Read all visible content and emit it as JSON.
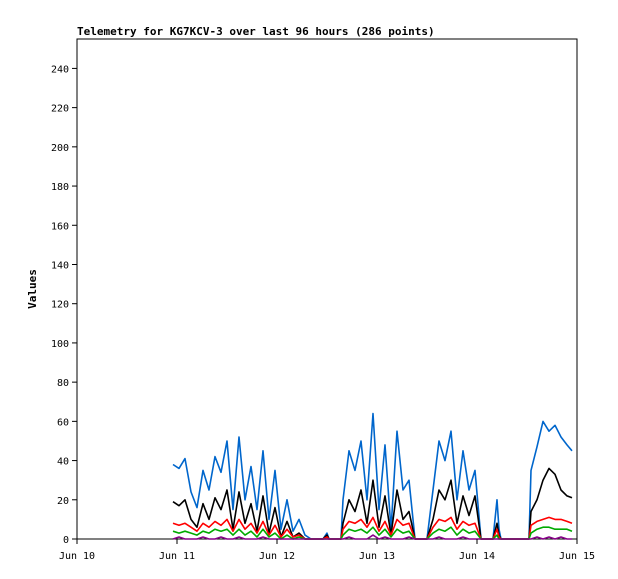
{
  "chart_data": {
    "type": "line",
    "title": "Telemetry for KG7KCV-3 over last 96 hours (286 points)",
    "xlabel": "",
    "ylabel": "Values",
    "x_tick_labels": [
      "Jun 10",
      "Jun 11",
      "Jun 12",
      "Jun 13",
      "Jun 14",
      "Jun 15"
    ],
    "x_range_days": [
      0,
      5
    ],
    "ylim": [
      0,
      255
    ],
    "y_ticks": [
      0,
      20,
      40,
      60,
      80,
      100,
      120,
      140,
      160,
      180,
      200,
      220,
      240
    ],
    "grid": false,
    "legend": "none",
    "series": [
      {
        "color": "#0066cc",
        "x": [
          0.96,
          1.02,
          1.08,
          1.14,
          1.2,
          1.26,
          1.32,
          1.38,
          1.44,
          1.5,
          1.56,
          1.62,
          1.68,
          1.74,
          1.8,
          1.86,
          1.92,
          1.98,
          2.04,
          2.1,
          2.16,
          2.22,
          2.28,
          2.34,
          2.4,
          2.46,
          2.5,
          2.52,
          2.56,
          2.64,
          2.66,
          2.72,
          2.78,
          2.84,
          2.9,
          2.96,
          3.02,
          3.08,
          3.14,
          3.2,
          3.26,
          3.32,
          3.38,
          3.44,
          3.5,
          3.56,
          3.62,
          3.68,
          3.74,
          3.8,
          3.86,
          3.92,
          3.98,
          4.04,
          4.1,
          4.16,
          4.2,
          4.22,
          4.24,
          4.3,
          4.36,
          4.42,
          4.48,
          4.52,
          4.54,
          4.6,
          4.66,
          4.72,
          4.78,
          4.84,
          4.9,
          4.95
        ],
        "y": [
          38,
          36,
          41,
          24,
          16,
          35,
          25,
          42,
          34,
          50,
          15,
          52,
          20,
          37,
          15,
          45,
          10,
          35,
          5,
          20,
          4,
          10,
          2,
          0,
          0,
          0,
          3,
          0,
          0,
          0,
          20,
          45,
          35,
          50,
          20,
          64,
          15,
          48,
          5,
          55,
          25,
          30,
          0,
          0,
          0,
          25,
          50,
          40,
          55,
          20,
          45,
          25,
          35,
          0,
          0,
          0,
          20,
          5,
          0,
          0,
          0,
          0,
          0,
          0,
          35,
          47,
          60,
          55,
          58,
          52,
          48,
          45
        ]
      },
      {
        "color": "#000000",
        "x": [
          0.96,
          1.02,
          1.08,
          1.14,
          1.2,
          1.26,
          1.32,
          1.38,
          1.44,
          1.5,
          1.56,
          1.62,
          1.68,
          1.74,
          1.8,
          1.86,
          1.92,
          1.98,
          2.04,
          2.1,
          2.16,
          2.22,
          2.28,
          2.34,
          2.4,
          2.46,
          2.5,
          2.52,
          2.56,
          2.64,
          2.66,
          2.72,
          2.78,
          2.84,
          2.9,
          2.96,
          3.02,
          3.08,
          3.14,
          3.2,
          3.26,
          3.32,
          3.38,
          3.44,
          3.5,
          3.56,
          3.62,
          3.68,
          3.74,
          3.8,
          3.86,
          3.92,
          3.98,
          4.04,
          4.1,
          4.16,
          4.2,
          4.22,
          4.24,
          4.3,
          4.36,
          4.42,
          4.48,
          4.52,
          4.54,
          4.6,
          4.66,
          4.72,
          4.78,
          4.84,
          4.9,
          4.95
        ],
        "y": [
          19,
          17,
          20,
          10,
          6,
          18,
          10,
          21,
          15,
          25,
          5,
          24,
          8,
          18,
          4,
          22,
          3,
          16,
          1,
          9,
          1,
          3,
          0,
          0,
          0,
          0,
          2,
          0,
          0,
          0,
          8,
          20,
          14,
          25,
          8,
          30,
          6,
          22,
          2,
          25,
          10,
          14,
          0,
          0,
          0,
          10,
          25,
          20,
          30,
          8,
          22,
          12,
          22,
          0,
          0,
          0,
          8,
          2,
          0,
          0,
          0,
          0,
          0,
          0,
          14,
          20,
          30,
          36,
          33,
          25,
          22,
          21
        ]
      },
      {
        "color": "#ff0000",
        "x": [
          0.96,
          1.02,
          1.08,
          1.14,
          1.2,
          1.26,
          1.32,
          1.38,
          1.44,
          1.5,
          1.56,
          1.62,
          1.68,
          1.74,
          1.8,
          1.86,
          1.92,
          1.98,
          2.04,
          2.1,
          2.16,
          2.22,
          2.28,
          2.34,
          2.4,
          2.46,
          2.5,
          2.52,
          2.56,
          2.64,
          2.66,
          2.72,
          2.78,
          2.84,
          2.9,
          2.96,
          3.02,
          3.08,
          3.14,
          3.2,
          3.26,
          3.32,
          3.38,
          3.44,
          3.5,
          3.56,
          3.62,
          3.68,
          3.74,
          3.8,
          3.86,
          3.92,
          3.98,
          4.04,
          4.1,
          4.16,
          4.2,
          4.22,
          4.24,
          4.3,
          4.36,
          4.42,
          4.48,
          4.52,
          4.54,
          4.6,
          4.66,
          4.72,
          4.78,
          4.84,
          4.9,
          4.95
        ],
        "y": [
          8,
          7,
          8,
          6,
          4,
          8,
          6,
          9,
          7,
          10,
          4,
          10,
          5,
          8,
          3,
          9,
          2,
          7,
          1,
          5,
          1,
          2,
          0,
          0,
          0,
          0,
          1,
          0,
          0,
          0,
          5,
          9,
          8,
          10,
          6,
          11,
          4,
          9,
          2,
          10,
          7,
          8,
          0,
          0,
          0,
          6,
          10,
          9,
          11,
          5,
          9,
          7,
          8,
          0,
          0,
          0,
          5,
          1,
          0,
          0,
          0,
          0,
          0,
          0,
          7,
          9,
          10,
          11,
          10,
          10,
          9,
          8
        ]
      },
      {
        "color": "#00aa00",
        "x": [
          0.96,
          1.02,
          1.08,
          1.14,
          1.2,
          1.26,
          1.32,
          1.38,
          1.44,
          1.5,
          1.56,
          1.62,
          1.68,
          1.74,
          1.8,
          1.86,
          1.92,
          1.98,
          2.04,
          2.1,
          2.16,
          2.22,
          2.28,
          2.34,
          2.4,
          2.46,
          2.5,
          2.52,
          2.56,
          2.64,
          2.66,
          2.72,
          2.78,
          2.84,
          2.9,
          2.96,
          3.02,
          3.08,
          3.14,
          3.2,
          3.26,
          3.32,
          3.38,
          3.44,
          3.5,
          3.56,
          3.62,
          3.68,
          3.74,
          3.8,
          3.86,
          3.92,
          3.98,
          4.04,
          4.1,
          4.16,
          4.2,
          4.22,
          4.24,
          4.3,
          4.36,
          4.42,
          4.48,
          4.52,
          4.54,
          4.6,
          4.66,
          4.72,
          4.78,
          4.84,
          4.9,
          4.95
        ],
        "y": [
          4,
          3,
          4,
          3,
          2,
          4,
          3,
          5,
          4,
          5,
          2,
          5,
          2,
          4,
          1,
          5,
          1,
          3,
          0,
          2,
          0,
          1,
          0,
          0,
          0,
          0,
          0,
          0,
          0,
          0,
          2,
          5,
          4,
          5,
          3,
          6,
          2,
          5,
          1,
          5,
          3,
          4,
          0,
          0,
          0,
          3,
          5,
          4,
          6,
          2,
          5,
          3,
          4,
          0,
          0,
          0,
          2,
          0,
          0,
          0,
          0,
          0,
          0,
          0,
          3,
          5,
          6,
          6,
          5,
          5,
          5,
          4
        ]
      },
      {
        "color": "#880088",
        "x": [
          0.96,
          1.02,
          1.08,
          1.14,
          1.2,
          1.26,
          1.32,
          1.38,
          1.44,
          1.5,
          1.56,
          1.62,
          1.68,
          1.74,
          1.8,
          1.86,
          1.92,
          1.98,
          2.04,
          2.1,
          2.16,
          2.22,
          2.28,
          2.34,
          2.4,
          2.46,
          2.5,
          2.52,
          2.56,
          2.64,
          2.66,
          2.72,
          2.78,
          2.84,
          2.9,
          2.96,
          3.02,
          3.08,
          3.14,
          3.2,
          3.26,
          3.32,
          3.38,
          3.44,
          3.5,
          3.56,
          3.62,
          3.68,
          3.74,
          3.8,
          3.86,
          3.92,
          3.98,
          4.04,
          4.1,
          4.16,
          4.2,
          4.22,
          4.24,
          4.3,
          4.36,
          4.42,
          4.48,
          4.52,
          4.54,
          4.6,
          4.66,
          4.72,
          4.78,
          4.84,
          4.9,
          4.95
        ],
        "y": [
          0,
          1,
          0,
          0,
          0,
          1,
          0,
          0,
          1,
          0,
          0,
          1,
          0,
          0,
          0,
          1,
          0,
          0,
          0,
          0,
          0,
          0,
          0,
          0,
          0,
          0,
          0,
          0,
          0,
          0,
          0,
          1,
          0,
          0,
          0,
          2,
          0,
          1,
          0,
          0,
          0,
          1,
          0,
          0,
          0,
          0,
          1,
          0,
          0,
          0,
          1,
          0,
          0,
          0,
          0,
          0,
          0,
          0,
          0,
          0,
          0,
          0,
          0,
          0,
          0,
          1,
          0,
          1,
          0,
          1,
          0,
          0
        ]
      }
    ]
  }
}
